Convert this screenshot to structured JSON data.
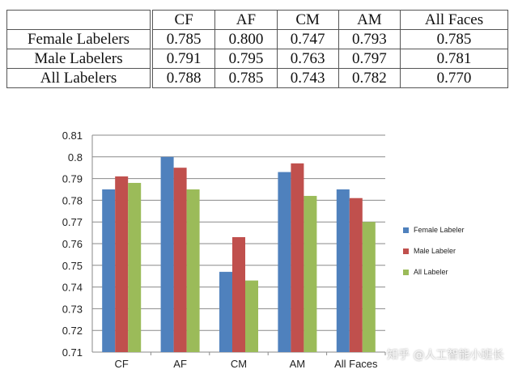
{
  "table": {
    "columns": [
      "",
      "CF",
      "AF",
      "CM",
      "AM",
      "All Faces"
    ],
    "rows": [
      {
        "label": "Female Labelers",
        "values": [
          "0.785",
          "0.800",
          "0.747",
          "0.793",
          "0.785"
        ]
      },
      {
        "label": "Male Labelers",
        "values": [
          "0.791",
          "0.795",
          "0.763",
          "0.797",
          "0.781"
        ]
      },
      {
        "label": "All Labelers",
        "values": [
          "0.788",
          "0.785",
          "0.743",
          "0.782",
          "0.770"
        ]
      }
    ]
  },
  "chart_data": {
    "type": "bar",
    "categories": [
      "CF",
      "AF",
      "CM",
      "AM",
      "All Faces"
    ],
    "series": [
      {
        "name": "Female Labeler",
        "color": "#4f81bd",
        "values": [
          0.785,
          0.8,
          0.747,
          0.793,
          0.785
        ]
      },
      {
        "name": "Male Labeler",
        "color": "#c0504d",
        "values": [
          0.791,
          0.795,
          0.763,
          0.797,
          0.781
        ]
      },
      {
        "name": "All Labeler",
        "color": "#9bbb59",
        "values": [
          0.788,
          0.785,
          0.743,
          0.782,
          0.77
        ]
      }
    ],
    "ylim": [
      0.71,
      0.81
    ],
    "yticks": [
      "0.71",
      "0.72",
      "0.73",
      "0.74",
      "0.75",
      "0.76",
      "0.77",
      "0.78",
      "0.79",
      "0.8",
      "0.81"
    ],
    "grid": true,
    "legend": "right"
  },
  "watermark": "知乎 @人工智能小班长"
}
